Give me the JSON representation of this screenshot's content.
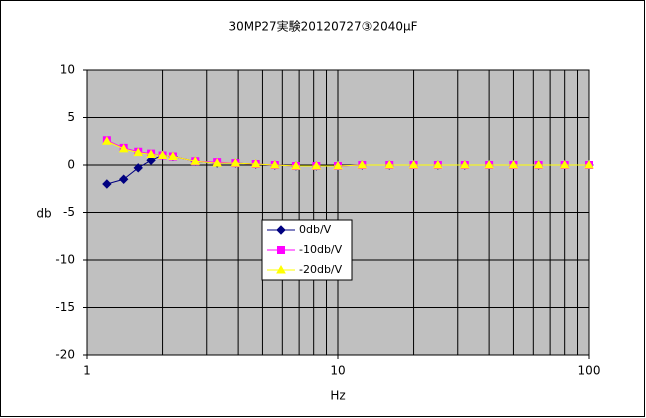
{
  "chart_data": {
    "type": "line",
    "title": "30MP27実験20120727③2040μF",
    "x_label": "Hz",
    "y_label": "db",
    "x": [
      1.2,
      1.4,
      1.6,
      1.8,
      2.0,
      2.2,
      2.7,
      3.3,
      3.9,
      4.7,
      5.6,
      6.8,
      8.2,
      10,
      12.5,
      16,
      20,
      25,
      32,
      40,
      50,
      63,
      80,
      100
    ],
    "series": [
      {
        "name": "0db/V",
        "color": "#000080",
        "marker": "diamond",
        "values": [
          -2.0,
          -1.5,
          -0.3,
          0.5,
          1.0,
          0.9,
          0.4,
          0.2,
          0.2,
          0.1,
          0.0,
          -0.1,
          -0.1,
          -0.1,
          0,
          0,
          0,
          0,
          0,
          0,
          0,
          0,
          0,
          0
        ]
      },
      {
        "name": "-10db/V",
        "color": "#ff00ff",
        "marker": "square",
        "values": [
          2.6,
          1.8,
          1.4,
          1.2,
          1.0,
          0.9,
          0.4,
          0.3,
          0.2,
          0.1,
          0.0,
          -0.1,
          -0.1,
          -0.1,
          0,
          0,
          0,
          0,
          0,
          0,
          0,
          0,
          0,
          0
        ]
      },
      {
        "name": "-20db/V",
        "color": "#ffff00",
        "marker": "triangle",
        "values": [
          2.5,
          1.7,
          1.3,
          1.1,
          1.0,
          0.9,
          0.4,
          0.2,
          0.2,
          0.1,
          0.0,
          -0.1,
          -0.1,
          -0.1,
          0,
          0,
          0,
          0,
          0,
          0,
          0,
          0,
          0,
          0
        ]
      }
    ],
    "xlim": [
      1,
      100
    ],
    "xticks": [
      1,
      10,
      100
    ],
    "x_log": true,
    "ylim": [
      -20,
      10
    ],
    "yticks": [
      10,
      5,
      0,
      -5,
      -10,
      -15,
      -20
    ],
    "grid": true
  }
}
